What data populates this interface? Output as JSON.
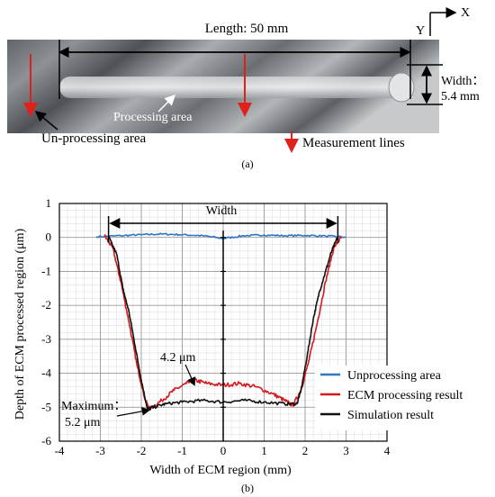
{
  "panel_a": {
    "length_label": "Length: 50 mm",
    "width_label_line1": "Width：",
    "width_label_line2": "5.4 mm",
    "processing_area_label": "Processing area",
    "unprocessing_area_label": "Un-processing area",
    "measurement_lines_label": "Measurement lines",
    "axis_x_label": "X",
    "axis_y_label": "Y",
    "caption": "(a)",
    "colors": {
      "measurement_arrow": "#e0201b"
    }
  },
  "panel_b": {
    "caption": "(b)",
    "annotations": {
      "width": "Width",
      "peak": "4.2 μm",
      "max_line1": "Maximum：",
      "max_line2": "5.2 μm"
    }
  },
  "chart_data": {
    "type": "line",
    "title": "",
    "xlabel": "Width of ECM region (mm)",
    "ylabel": "Depth of ECM processed region (μm)",
    "xlim": [
      -4,
      4
    ],
    "ylim": [
      -6,
      1
    ],
    "xticks": [
      -4,
      -3,
      -2,
      -1,
      0,
      1,
      2,
      3,
      4
    ],
    "yticks": [
      1,
      0,
      -1,
      -2,
      -3,
      -4,
      -5,
      -6
    ],
    "grid": true,
    "legend_position": "bottom-right",
    "series": [
      {
        "name": "Unprocessing area",
        "color": "#2e75c5",
        "x": [
          -3.1,
          -2.5,
          -2.0,
          -1.5,
          -1.0,
          -0.5,
          0.0,
          0.5,
          1.0,
          1.5,
          2.0,
          2.5,
          3.0
        ],
        "y": [
          0.02,
          0.05,
          0.08,
          0.1,
          0.08,
          0.05,
          -0.03,
          0.05,
          0.07,
          0.05,
          0.06,
          0.04,
          0.01
        ]
      },
      {
        "name": "ECM processing result",
        "color": "#d4191c",
        "x": [
          -2.9,
          -2.7,
          -2.5,
          -2.3,
          -2.1,
          -1.9,
          -1.8,
          -1.5,
          -1.2,
          -0.9,
          -0.7,
          -0.4,
          0.0,
          0.4,
          0.8,
          1.2,
          1.5,
          1.7,
          1.9,
          2.1,
          2.3,
          2.5,
          2.7,
          2.9
        ],
        "y": [
          0.05,
          -0.3,
          -1.3,
          -2.5,
          -3.8,
          -4.8,
          -5.05,
          -4.8,
          -4.5,
          -4.3,
          -4.2,
          -4.3,
          -4.35,
          -4.3,
          -4.4,
          -4.6,
          -4.8,
          -4.95,
          -4.5,
          -3.6,
          -2.5,
          -1.3,
          -0.3,
          0.02
        ]
      },
      {
        "name": "Simulation result",
        "color": "#111111",
        "x": [
          -2.8,
          -2.6,
          -2.45,
          -2.3,
          -2.15,
          -2.0,
          -1.85,
          -1.7,
          -1.4,
          -1.0,
          -0.5,
          0.0,
          0.5,
          1.0,
          1.5,
          1.8,
          1.9,
          2.05,
          2.2,
          2.35,
          2.5,
          2.65,
          2.8
        ],
        "y": [
          0.02,
          -0.5,
          -1.5,
          -2.2,
          -3.2,
          -4.2,
          -5.05,
          -5.0,
          -4.9,
          -4.85,
          -4.8,
          -4.85,
          -4.8,
          -4.85,
          -4.9,
          -4.9,
          -4.5,
          -3.5,
          -2.4,
          -1.6,
          -1.0,
          -0.4,
          0.02
        ]
      }
    ]
  }
}
